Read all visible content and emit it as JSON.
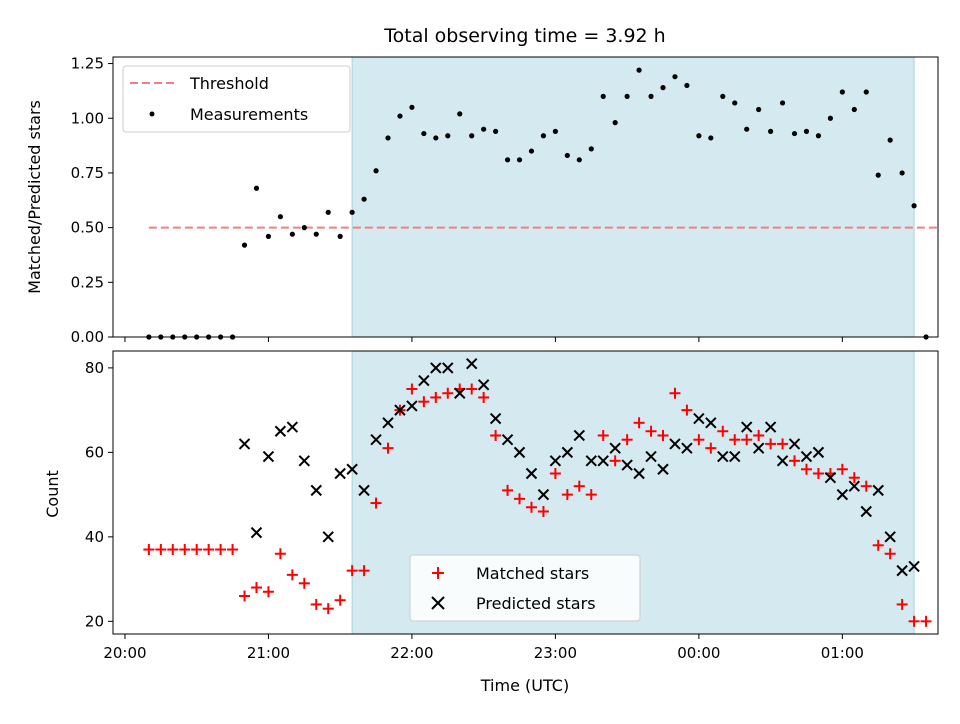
{
  "chart_data": [
    {
      "type": "scatter",
      "title": "Total observing time = 3.92 h",
      "xlabel": "",
      "ylabel": "Matched/Predicted stars",
      "ylim": [
        0,
        1.28
      ],
      "yticks": [
        "0.00",
        "0.25",
        "0.50",
        "0.75",
        "1.00",
        "1.25"
      ],
      "shaded_interval": [
        "21:35",
        "01:30"
      ],
      "shade_color": "#d4eaf0",
      "threshold": {
        "name": "Threshold",
        "value": 0.5,
        "x_range": [
          "20:10",
          "01:40"
        ],
        "color": "#f08080"
      },
      "legend": {
        "placement": "upper-left",
        "entries": [
          "Threshold",
          "Measurements"
        ]
      },
      "series": [
        {
          "name": "Measurements",
          "color": "#000000",
          "x": [
            "20:10",
            "20:15",
            "20:20",
            "20:25",
            "20:30",
            "20:35",
            "20:40",
            "20:45",
            "20:50",
            "20:55",
            "21:00",
            "21:05",
            "21:10",
            "21:15",
            "21:20",
            "21:25",
            "21:30",
            "21:35",
            "21:40",
            "21:45",
            "21:50",
            "21:55",
            "22:00",
            "22:05",
            "22:10",
            "22:15",
            "22:20",
            "22:25",
            "22:30",
            "22:35",
            "22:40",
            "22:45",
            "22:50",
            "22:55",
            "23:00",
            "23:05",
            "23:10",
            "23:15",
            "23:20",
            "23:25",
            "23:30",
            "23:35",
            "23:40",
            "23:45",
            "23:50",
            "23:55",
            "00:00",
            "00:05",
            "00:10",
            "00:15",
            "00:20",
            "00:25",
            "00:30",
            "00:35",
            "00:40",
            "00:45",
            "00:50",
            "00:55",
            "01:00",
            "01:05",
            "01:10",
            "01:15",
            "01:20",
            "01:25",
            "01:30",
            "01:35"
          ],
          "y": [
            0,
            0,
            0,
            0,
            0,
            0,
            0,
            0,
            0.42,
            0.68,
            0.46,
            0.55,
            0.47,
            0.5,
            0.47,
            0.57,
            0.46,
            0.57,
            0.63,
            0.76,
            0.91,
            1.01,
            1.05,
            0.93,
            0.91,
            0.92,
            1.02,
            0.92,
            0.95,
            0.94,
            0.81,
            0.81,
            0.85,
            0.92,
            0.94,
            0.83,
            0.81,
            0.86,
            1.1,
            0.98,
            1.1,
            1.22,
            1.1,
            1.14,
            1.19,
            1.15,
            0.92,
            0.91,
            1.1,
            1.07,
            0.95,
            1.04,
            0.94,
            1.07,
            0.93,
            0.94,
            0.92,
            1.0,
            1.12,
            1.04,
            1.12,
            0.74,
            0.9,
            0.75,
            0.6,
            0
          ]
        }
      ]
    },
    {
      "type": "scatter",
      "title": "",
      "xlabel": "Time (UTC)",
      "ylabel": "Count",
      "ylim": [
        17,
        84
      ],
      "yticks": [
        "20",
        "40",
        "60",
        "80"
      ],
      "xticks": [
        "20:00",
        "21:00",
        "22:00",
        "23:00",
        "00:00",
        "01:00"
      ],
      "shaded_interval": [
        "21:35",
        "01:30"
      ],
      "legend": {
        "placement": "lower-center",
        "entries": [
          "Matched stars",
          "Predicted stars"
        ]
      },
      "series": [
        {
          "name": "Matched stars",
          "color": "#ff0000",
          "marker": "+",
          "x": [
            "20:10",
            "20:15",
            "20:20",
            "20:25",
            "20:30",
            "20:35",
            "20:40",
            "20:45",
            "20:50",
            "20:55",
            "21:00",
            "21:05",
            "21:10",
            "21:15",
            "21:20",
            "21:25",
            "21:30",
            "21:35",
            "21:40",
            "21:45",
            "21:50",
            "21:55",
            "22:00",
            "22:05",
            "22:10",
            "22:15",
            "22:20",
            "22:25",
            "22:30",
            "22:35",
            "22:40",
            "22:45",
            "22:50",
            "22:55",
            "23:00",
            "23:05",
            "23:10",
            "23:15",
            "23:20",
            "23:25",
            "23:30",
            "23:35",
            "23:40",
            "23:45",
            "23:50",
            "23:55",
            "00:00",
            "00:05",
            "00:10",
            "00:15",
            "00:20",
            "00:25",
            "00:30",
            "00:35",
            "00:40",
            "00:45",
            "00:50",
            "00:55",
            "01:00",
            "01:05",
            "01:10",
            "01:15",
            "01:20",
            "01:25",
            "01:30",
            "01:35"
          ],
          "y": [
            37,
            37,
            37,
            37,
            37,
            37,
            37,
            37,
            26,
            28,
            27,
            36,
            31,
            29,
            24,
            23,
            25,
            32,
            32,
            48,
            61,
            70,
            75,
            72,
            73,
            74,
            75,
            75,
            73,
            64,
            51,
            49,
            47,
            46,
            55,
            50,
            52,
            50,
            64,
            58,
            63,
            67,
            65,
            64,
            74,
            70,
            63,
            61,
            65,
            63,
            63,
            64,
            62,
            62,
            58,
            56,
            55,
            55,
            56,
            54,
            52,
            38,
            36,
            24,
            20,
            20
          ]
        },
        {
          "name": "Predicted stars",
          "color": "#000000",
          "marker": "x",
          "x": [
            "20:50",
            "20:55",
            "21:00",
            "21:05",
            "21:10",
            "21:15",
            "21:20",
            "21:25",
            "21:30",
            "21:35",
            "21:40",
            "21:45",
            "21:50",
            "21:55",
            "22:00",
            "22:05",
            "22:10",
            "22:15",
            "22:20",
            "22:25",
            "22:30",
            "22:35",
            "22:40",
            "22:45",
            "22:50",
            "22:55",
            "23:00",
            "23:05",
            "23:10",
            "23:15",
            "23:20",
            "23:25",
            "23:30",
            "23:35",
            "23:40",
            "23:45",
            "23:50",
            "23:55",
            "00:00",
            "00:05",
            "00:10",
            "00:15",
            "00:20",
            "00:25",
            "00:30",
            "00:35",
            "00:40",
            "00:45",
            "00:50",
            "00:55",
            "01:00",
            "01:05",
            "01:10",
            "01:15",
            "01:20",
            "01:25",
            "01:30"
          ],
          "y": [
            62,
            41,
            59,
            65,
            66,
            58,
            51,
            40,
            55,
            56,
            51,
            63,
            67,
            70,
            71,
            77,
            80,
            80,
            74,
            81,
            76,
            68,
            63,
            60,
            55,
            50,
            58,
            60,
            64,
            58,
            58,
            61,
            57,
            55,
            59,
            56,
            62,
            61,
            68,
            67,
            59,
            59,
            66,
            61,
            66,
            58,
            62,
            59,
            60,
            54,
            50,
            52,
            46,
            51,
            40,
            32,
            33
          ]
        }
      ]
    }
  ]
}
